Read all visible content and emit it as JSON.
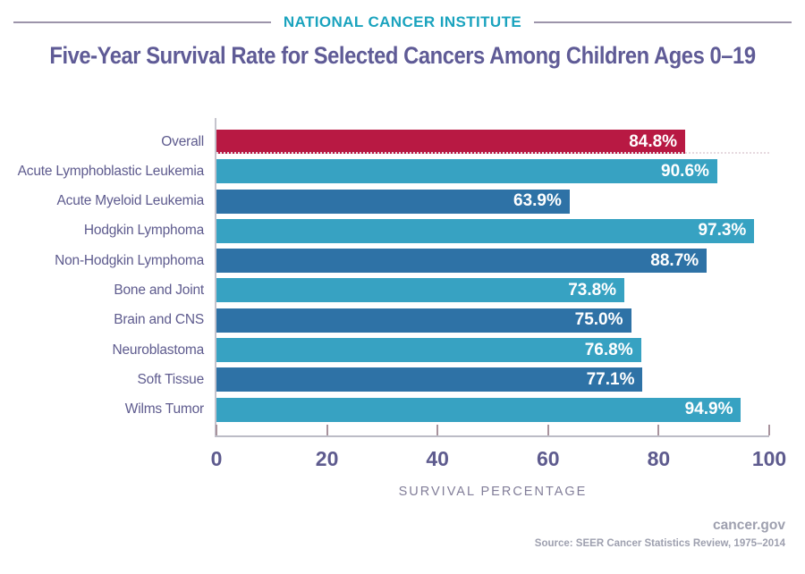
{
  "header": {
    "institute": "NATIONAL CANCER INSTITUTE"
  },
  "title": "Five-Year Survival Rate for Selected Cancers Among Children Ages 0–19",
  "chart_data": {
    "type": "bar",
    "orientation": "horizontal",
    "title": "Five-Year Survival Rate for Selected Cancers Among Children Ages 0–19",
    "categories": [
      "Overall",
      "Acute Lymphoblastic Leukemia",
      "Acute Myeloid Leukemia",
      "Hodgkin Lymphoma",
      "Non-Hodgkin Lymphoma",
      "Bone and Joint",
      "Brain and CNS",
      "Neuroblastoma",
      "Soft Tissue",
      "Wilms Tumor"
    ],
    "values": [
      84.8,
      90.6,
      63.9,
      97.3,
      88.7,
      73.8,
      75.0,
      76.8,
      77.1,
      94.9
    ],
    "value_labels": [
      "84.8%",
      "90.6%",
      "63.9%",
      "97.3%",
      "88.7%",
      "73.8%",
      "75.0%",
      "76.8%",
      "77.1%",
      "94.9%"
    ],
    "xlabel": "SURVIVAL PERCENTAGE",
    "x_ticks": [
      0,
      20,
      40,
      60,
      80,
      100
    ],
    "x_tick_labels": [
      "0",
      "20",
      "40",
      "60",
      "80",
      "100"
    ],
    "xlim": [
      0,
      100
    ],
    "grid": false,
    "legend": false,
    "colors": {
      "overall": "#B81943",
      "light": "#37A2C2",
      "dark": "#2E72A6"
    },
    "bar_color_roles": [
      "overall",
      "light",
      "dark",
      "light",
      "dark",
      "light",
      "dark",
      "light",
      "dark",
      "light"
    ]
  },
  "footer": {
    "site": "cancer.gov",
    "source": "Source:  SEER Cancer Statistics Review, 1975–2014"
  }
}
